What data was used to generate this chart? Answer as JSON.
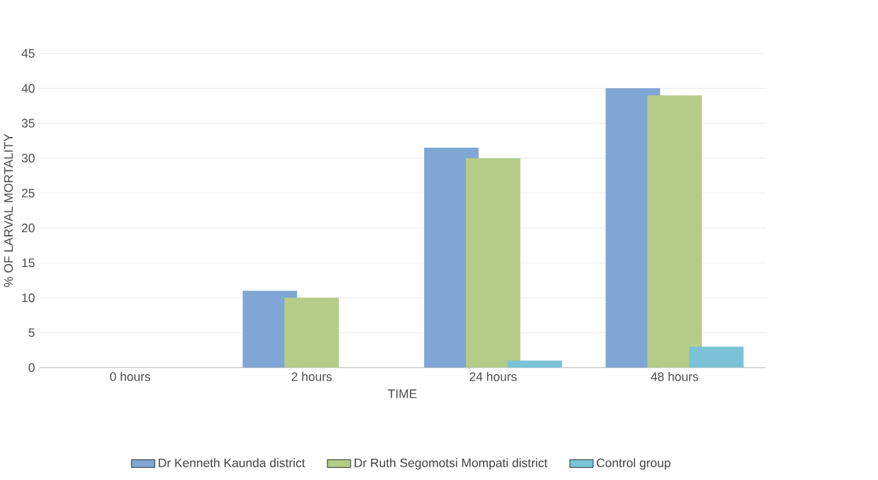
{
  "chart_data": {
    "type": "bar",
    "xlabel": "TIME",
    "ylabel": "% OF LARVAL MORTALITY",
    "categories": [
      "0 hours",
      "2 hours",
      "24 hours",
      "48 hours"
    ],
    "series": [
      {
        "name": "Dr Kenneth Kaunda district",
        "color": "#7fa6d4",
        "values": [
          0,
          11,
          31.5,
          40
        ]
      },
      {
        "name": "Dr Ruth Segomotsi Mompati district",
        "color": "#b5cc89",
        "values": [
          0,
          10,
          30,
          39
        ]
      },
      {
        "name": "Control group",
        "color": "#7cc2d6",
        "values": [
          0,
          0,
          1,
          3
        ]
      }
    ],
    "ylim": [
      0,
      45
    ],
    "yticks": [
      0,
      5,
      10,
      15,
      20,
      25,
      30,
      35,
      40,
      45
    ],
    "grid": "y",
    "legend": "bottom"
  }
}
